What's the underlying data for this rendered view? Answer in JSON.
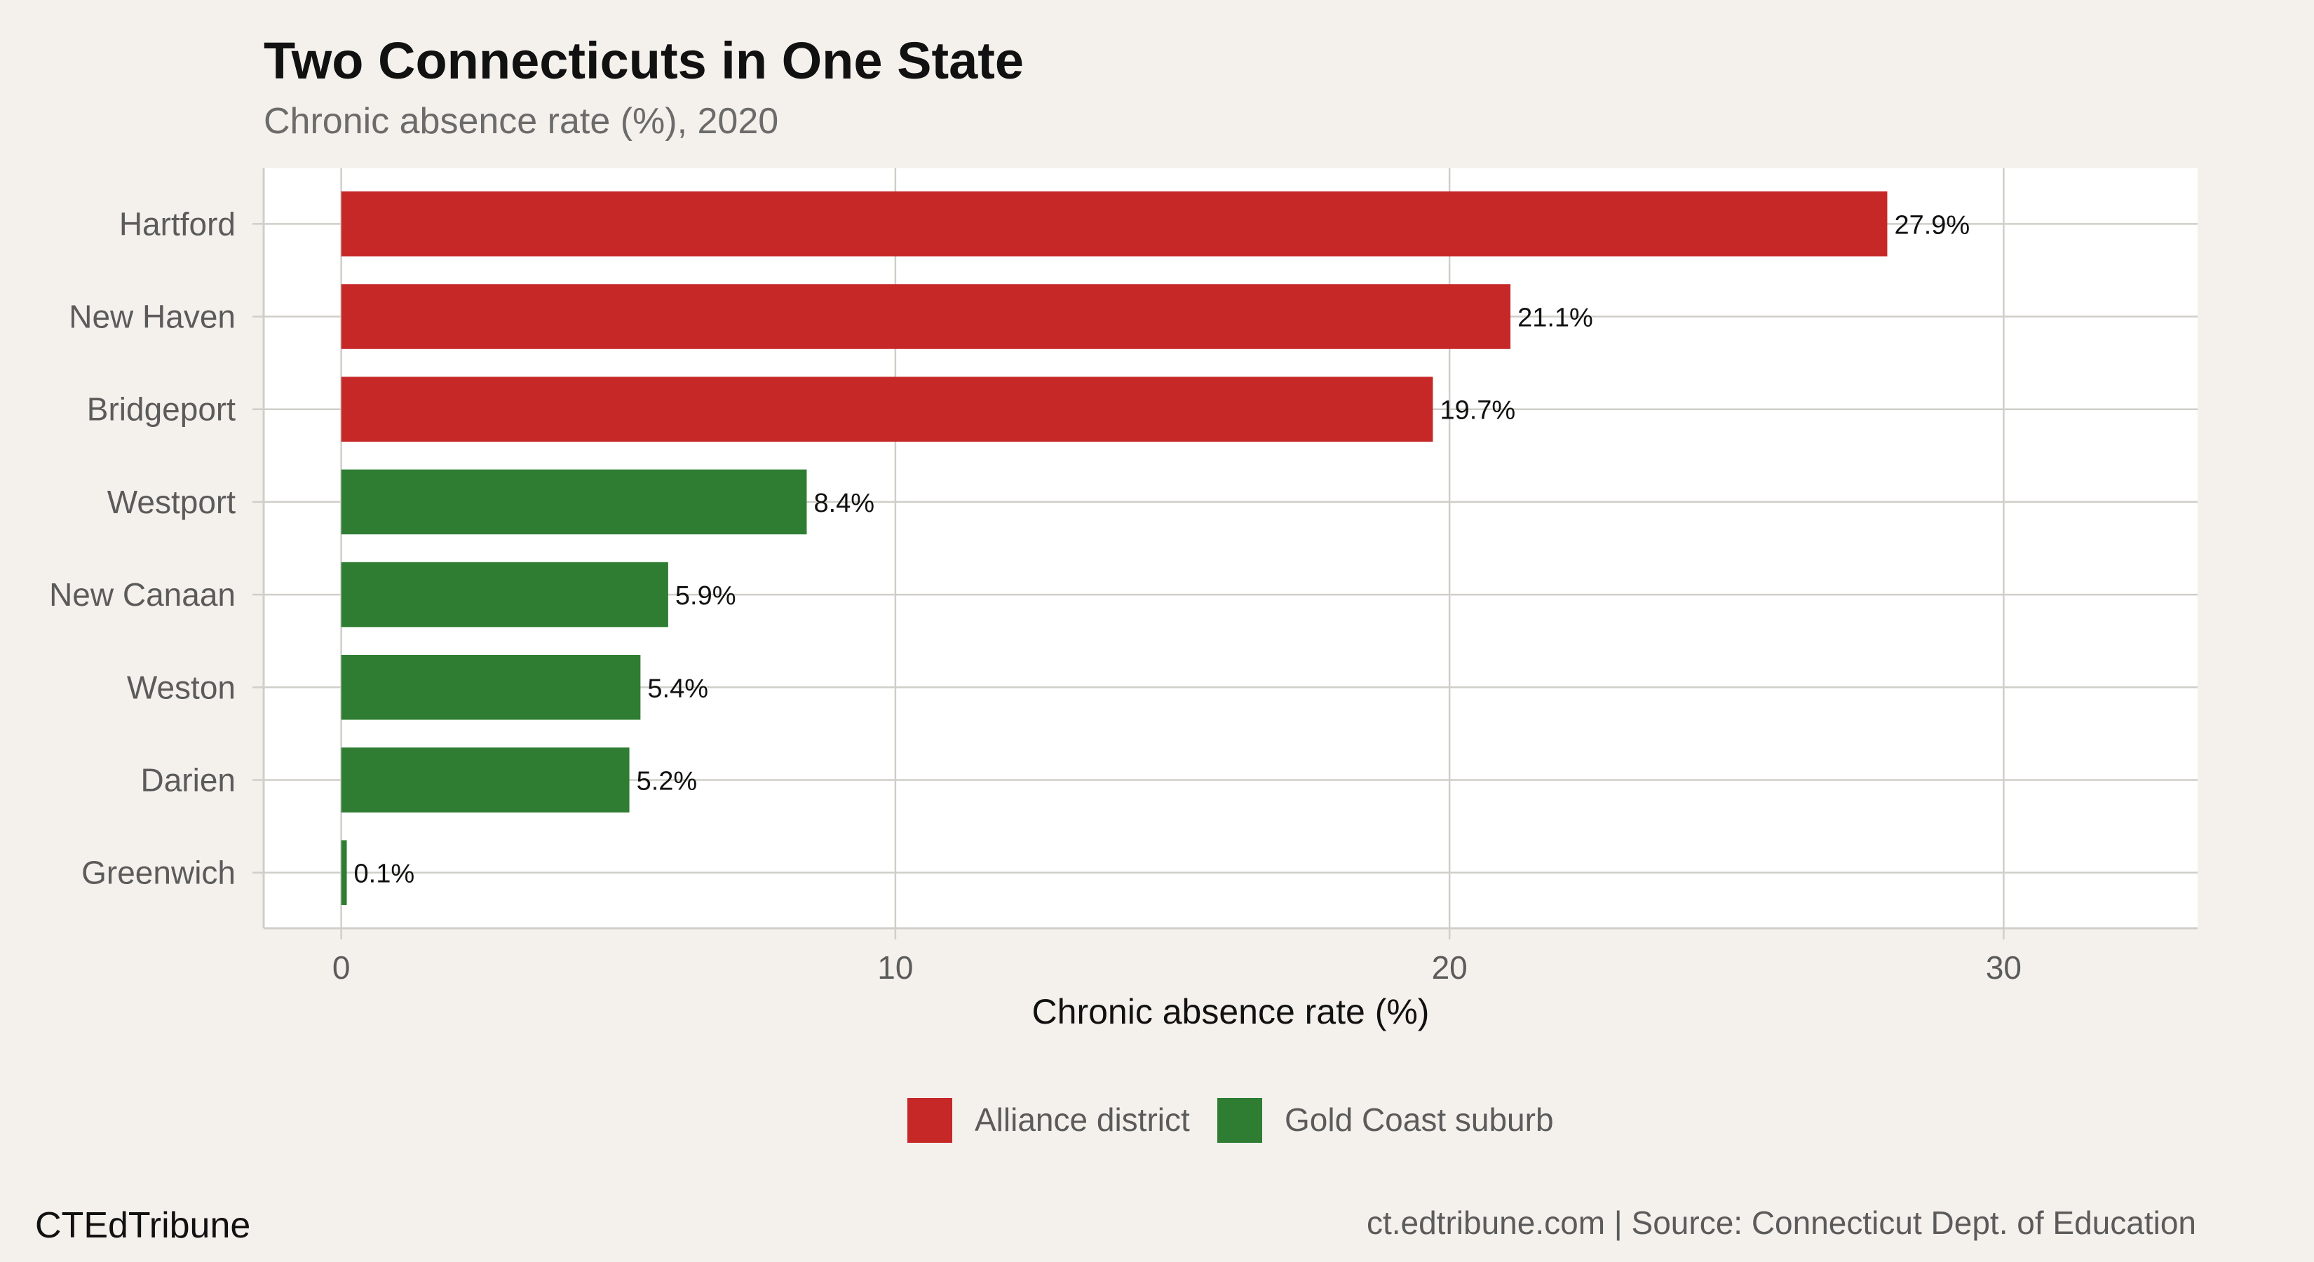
{
  "chart_data": {
    "type": "bar",
    "orientation": "horizontal",
    "title": "Two Connecticuts in One State",
    "subtitle": "Chronic absence rate (%), 2020",
    "xlabel": "Chronic absence rate (%)",
    "ylabel": "",
    "xlim": [
      -1.4,
      33.5
    ],
    "x_ticks": [
      0,
      10,
      20,
      30
    ],
    "grid": true,
    "legend_position": "bottom",
    "categories": [
      "Hartford",
      "New Haven",
      "Bridgeport",
      "Westport",
      "New Canaan",
      "Weston",
      "Darien",
      "Greenwich"
    ],
    "values": [
      27.9,
      21.1,
      19.7,
      8.4,
      5.9,
      5.4,
      5.2,
      0.1
    ],
    "data_labels": [
      "27.9%",
      "21.1%",
      "19.7%",
      "8.4%",
      "5.9%",
      "5.4%",
      "5.2%",
      "0.1%"
    ],
    "groups": [
      "Alliance district",
      "Alliance district",
      "Alliance district",
      "Gold Coast suburb",
      "Gold Coast suburb",
      "Gold Coast suburb",
      "Gold Coast suburb",
      "Gold Coast suburb"
    ],
    "legend": [
      {
        "name": "Alliance district",
        "color": "#c62828"
      },
      {
        "name": "Gold Coast suburb",
        "color": "#2e7d32"
      }
    ]
  },
  "footer": {
    "brand": "CTEdTribune",
    "source": "ct.edtribune.com | Source: Connecticut Dept. of Education"
  },
  "colors": {
    "background": "#f4f1ec",
    "panel": "#ffffff",
    "grid": "#d0cec8"
  }
}
